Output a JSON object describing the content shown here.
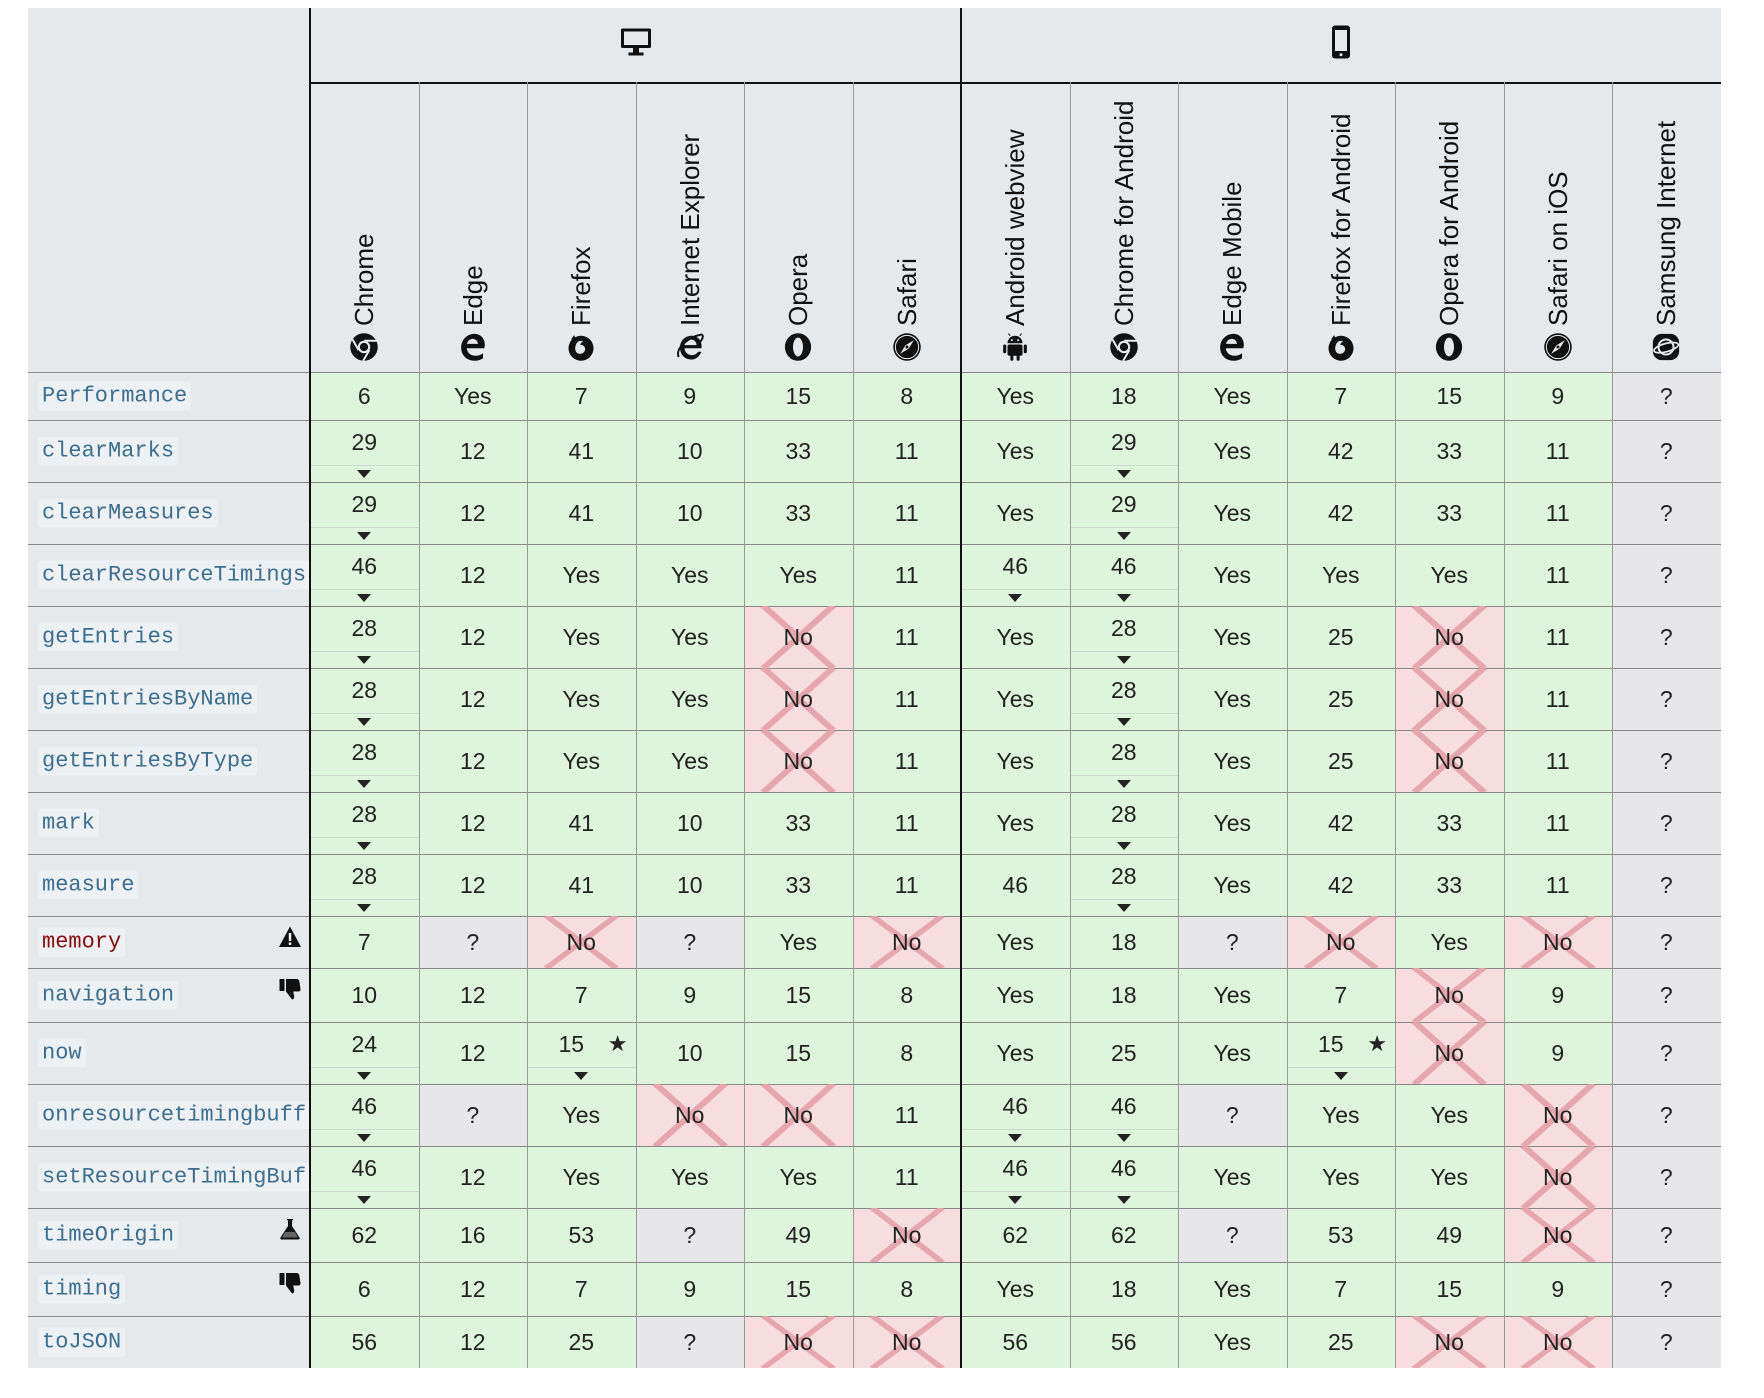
{
  "groups": [
    {
      "label": "Desktop",
      "icon": "desktop-icon"
    },
    {
      "label": "Mobile",
      "icon": "mobile-icon"
    }
  ],
  "browsers": [
    {
      "label": "Chrome",
      "icon": "chrome-icon"
    },
    {
      "label": "Edge",
      "icon": "edge-icon"
    },
    {
      "label": "Firefox",
      "icon": "firefox-icon"
    },
    {
      "label": "Internet Explorer",
      "icon": "internet-explorer-icon"
    },
    {
      "label": "Opera",
      "icon": "opera-icon"
    },
    {
      "label": "Safari",
      "icon": "safari-icon"
    },
    {
      "label": "Android webview",
      "icon": "android-icon"
    },
    {
      "label": "Chrome for Android",
      "icon": "chrome-icon"
    },
    {
      "label": "Edge Mobile",
      "icon": "edge-icon"
    },
    {
      "label": "Firefox for Android",
      "icon": "firefox-icon"
    },
    {
      "label": "Opera for Android",
      "icon": "opera-icon"
    },
    {
      "label": "Safari on iOS",
      "icon": "safari-icon"
    },
    {
      "label": "Samsung Internet",
      "icon": "samsung-internet-icon"
    }
  ],
  "rows": [
    {
      "name": "Performance",
      "warn": false,
      "flag": "",
      "cells": [
        {
          "v": "6",
          "s": "yes"
        },
        {
          "v": "Yes",
          "s": "yes"
        },
        {
          "v": "7",
          "s": "yes"
        },
        {
          "v": "9",
          "s": "yes"
        },
        {
          "v": "15",
          "s": "yes"
        },
        {
          "v": "8",
          "s": "yes"
        },
        {
          "v": "Yes",
          "s": "yes"
        },
        {
          "v": "18",
          "s": "yes"
        },
        {
          "v": "Yes",
          "s": "yes"
        },
        {
          "v": "7",
          "s": "yes"
        },
        {
          "v": "15",
          "s": "yes"
        },
        {
          "v": "9",
          "s": "yes"
        },
        {
          "v": "?",
          "s": "unk"
        }
      ]
    },
    {
      "name": "clearMarks",
      "warn": false,
      "flag": "",
      "cells": [
        {
          "v": "29",
          "s": "yes",
          "note": true
        },
        {
          "v": "12",
          "s": "yes"
        },
        {
          "v": "41",
          "s": "yes"
        },
        {
          "v": "10",
          "s": "yes"
        },
        {
          "v": "33",
          "s": "yes"
        },
        {
          "v": "11",
          "s": "yes"
        },
        {
          "v": "Yes",
          "s": "yes"
        },
        {
          "v": "29",
          "s": "yes",
          "note": true
        },
        {
          "v": "Yes",
          "s": "yes"
        },
        {
          "v": "42",
          "s": "yes"
        },
        {
          "v": "33",
          "s": "yes"
        },
        {
          "v": "11",
          "s": "yes"
        },
        {
          "v": "?",
          "s": "unk"
        }
      ]
    },
    {
      "name": "clearMeasures",
      "warn": false,
      "flag": "",
      "cells": [
        {
          "v": "29",
          "s": "yes",
          "note": true
        },
        {
          "v": "12",
          "s": "yes"
        },
        {
          "v": "41",
          "s": "yes"
        },
        {
          "v": "10",
          "s": "yes"
        },
        {
          "v": "33",
          "s": "yes"
        },
        {
          "v": "11",
          "s": "yes"
        },
        {
          "v": "Yes",
          "s": "yes"
        },
        {
          "v": "29",
          "s": "yes",
          "note": true
        },
        {
          "v": "Yes",
          "s": "yes"
        },
        {
          "v": "42",
          "s": "yes"
        },
        {
          "v": "33",
          "s": "yes"
        },
        {
          "v": "11",
          "s": "yes"
        },
        {
          "v": "?",
          "s": "unk"
        }
      ]
    },
    {
      "name": "clearResourceTimings",
      "warn": false,
      "flag": "",
      "cells": [
        {
          "v": "46",
          "s": "yes",
          "note": true
        },
        {
          "v": "12",
          "s": "yes"
        },
        {
          "v": "Yes",
          "s": "yes"
        },
        {
          "v": "Yes",
          "s": "yes"
        },
        {
          "v": "Yes",
          "s": "yes"
        },
        {
          "v": "11",
          "s": "yes"
        },
        {
          "v": "46",
          "s": "yes",
          "note": true
        },
        {
          "v": "46",
          "s": "yes",
          "note": true
        },
        {
          "v": "Yes",
          "s": "yes"
        },
        {
          "v": "Yes",
          "s": "yes"
        },
        {
          "v": "Yes",
          "s": "yes"
        },
        {
          "v": "11",
          "s": "yes"
        },
        {
          "v": "?",
          "s": "unk"
        }
      ]
    },
    {
      "name": "getEntries",
      "warn": false,
      "flag": "",
      "cells": [
        {
          "v": "28",
          "s": "yes",
          "note": true
        },
        {
          "v": "12",
          "s": "yes"
        },
        {
          "v": "Yes",
          "s": "yes"
        },
        {
          "v": "Yes",
          "s": "yes"
        },
        {
          "v": "No",
          "s": "no"
        },
        {
          "v": "11",
          "s": "yes"
        },
        {
          "v": "Yes",
          "s": "yes"
        },
        {
          "v": "28",
          "s": "yes",
          "note": true
        },
        {
          "v": "Yes",
          "s": "yes"
        },
        {
          "v": "25",
          "s": "yes"
        },
        {
          "v": "No",
          "s": "no"
        },
        {
          "v": "11",
          "s": "yes"
        },
        {
          "v": "?",
          "s": "unk"
        }
      ]
    },
    {
      "name": "getEntriesByName",
      "warn": false,
      "flag": "",
      "cells": [
        {
          "v": "28",
          "s": "yes",
          "note": true
        },
        {
          "v": "12",
          "s": "yes"
        },
        {
          "v": "Yes",
          "s": "yes"
        },
        {
          "v": "Yes",
          "s": "yes"
        },
        {
          "v": "No",
          "s": "no"
        },
        {
          "v": "11",
          "s": "yes"
        },
        {
          "v": "Yes",
          "s": "yes"
        },
        {
          "v": "28",
          "s": "yes",
          "note": true
        },
        {
          "v": "Yes",
          "s": "yes"
        },
        {
          "v": "25",
          "s": "yes"
        },
        {
          "v": "No",
          "s": "no"
        },
        {
          "v": "11",
          "s": "yes"
        },
        {
          "v": "?",
          "s": "unk"
        }
      ]
    },
    {
      "name": "getEntriesByType",
      "warn": false,
      "flag": "",
      "cells": [
        {
          "v": "28",
          "s": "yes",
          "note": true
        },
        {
          "v": "12",
          "s": "yes"
        },
        {
          "v": "Yes",
          "s": "yes"
        },
        {
          "v": "Yes",
          "s": "yes"
        },
        {
          "v": "No",
          "s": "no"
        },
        {
          "v": "11",
          "s": "yes"
        },
        {
          "v": "Yes",
          "s": "yes"
        },
        {
          "v": "28",
          "s": "yes",
          "note": true
        },
        {
          "v": "Yes",
          "s": "yes"
        },
        {
          "v": "25",
          "s": "yes"
        },
        {
          "v": "No",
          "s": "no"
        },
        {
          "v": "11",
          "s": "yes"
        },
        {
          "v": "?",
          "s": "unk"
        }
      ]
    },
    {
      "name": "mark",
      "warn": false,
      "flag": "",
      "cells": [
        {
          "v": "28",
          "s": "yes",
          "note": true
        },
        {
          "v": "12",
          "s": "yes"
        },
        {
          "v": "41",
          "s": "yes"
        },
        {
          "v": "10",
          "s": "yes"
        },
        {
          "v": "33",
          "s": "yes"
        },
        {
          "v": "11",
          "s": "yes"
        },
        {
          "v": "Yes",
          "s": "yes"
        },
        {
          "v": "28",
          "s": "yes",
          "note": true
        },
        {
          "v": "Yes",
          "s": "yes"
        },
        {
          "v": "42",
          "s": "yes"
        },
        {
          "v": "33",
          "s": "yes"
        },
        {
          "v": "11",
          "s": "yes"
        },
        {
          "v": "?",
          "s": "unk"
        }
      ]
    },
    {
      "name": "measure",
      "warn": false,
      "flag": "",
      "cells": [
        {
          "v": "28",
          "s": "yes",
          "note": true
        },
        {
          "v": "12",
          "s": "yes"
        },
        {
          "v": "41",
          "s": "yes"
        },
        {
          "v": "10",
          "s": "yes"
        },
        {
          "v": "33",
          "s": "yes"
        },
        {
          "v": "11",
          "s": "yes"
        },
        {
          "v": "46",
          "s": "yes"
        },
        {
          "v": "28",
          "s": "yes",
          "note": true
        },
        {
          "v": "Yes",
          "s": "yes"
        },
        {
          "v": "42",
          "s": "yes"
        },
        {
          "v": "33",
          "s": "yes"
        },
        {
          "v": "11",
          "s": "yes"
        },
        {
          "v": "?",
          "s": "unk"
        }
      ]
    },
    {
      "name": "memory",
      "warn": true,
      "flag": "warning-icon",
      "cells": [
        {
          "v": "7",
          "s": "yes"
        },
        {
          "v": "?",
          "s": "unk"
        },
        {
          "v": "No",
          "s": "no"
        },
        {
          "v": "?",
          "s": "unk"
        },
        {
          "v": "Yes",
          "s": "yes"
        },
        {
          "v": "No",
          "s": "no"
        },
        {
          "v": "Yes",
          "s": "yes"
        },
        {
          "v": "18",
          "s": "yes"
        },
        {
          "v": "?",
          "s": "unk"
        },
        {
          "v": "No",
          "s": "no"
        },
        {
          "v": "Yes",
          "s": "yes"
        },
        {
          "v": "No",
          "s": "no"
        },
        {
          "v": "?",
          "s": "unk"
        }
      ]
    },
    {
      "name": "navigation",
      "warn": false,
      "flag": "thumbs-down-icon",
      "cells": [
        {
          "v": "10",
          "s": "yes"
        },
        {
          "v": "12",
          "s": "yes"
        },
        {
          "v": "7",
          "s": "yes"
        },
        {
          "v": "9",
          "s": "yes"
        },
        {
          "v": "15",
          "s": "yes"
        },
        {
          "v": "8",
          "s": "yes"
        },
        {
          "v": "Yes",
          "s": "yes"
        },
        {
          "v": "18",
          "s": "yes"
        },
        {
          "v": "Yes",
          "s": "yes"
        },
        {
          "v": "7",
          "s": "yes"
        },
        {
          "v": "No",
          "s": "no"
        },
        {
          "v": "9",
          "s": "yes"
        },
        {
          "v": "?",
          "s": "unk"
        }
      ]
    },
    {
      "name": "now",
      "warn": false,
      "flag": "",
      "cells": [
        {
          "v": "24",
          "s": "yes",
          "note": true
        },
        {
          "v": "12",
          "s": "yes"
        },
        {
          "v": "15",
          "s": "yes",
          "note": true,
          "star": true
        },
        {
          "v": "10",
          "s": "yes"
        },
        {
          "v": "15",
          "s": "yes"
        },
        {
          "v": "8",
          "s": "yes"
        },
        {
          "v": "Yes",
          "s": "yes"
        },
        {
          "v": "25",
          "s": "yes"
        },
        {
          "v": "Yes",
          "s": "yes"
        },
        {
          "v": "15",
          "s": "yes",
          "note": true,
          "star": true
        },
        {
          "v": "No",
          "s": "no"
        },
        {
          "v": "9",
          "s": "yes"
        },
        {
          "v": "?",
          "s": "unk"
        }
      ]
    },
    {
      "name": "onresourcetimingbuff",
      "warn": false,
      "flag": "",
      "cells": [
        {
          "v": "46",
          "s": "yes",
          "note": true
        },
        {
          "v": "?",
          "s": "unk"
        },
        {
          "v": "Yes",
          "s": "yes"
        },
        {
          "v": "No",
          "s": "no"
        },
        {
          "v": "No",
          "s": "no"
        },
        {
          "v": "11",
          "s": "yes"
        },
        {
          "v": "46",
          "s": "yes",
          "note": true
        },
        {
          "v": "46",
          "s": "yes",
          "note": true
        },
        {
          "v": "?",
          "s": "unk"
        },
        {
          "v": "Yes",
          "s": "yes"
        },
        {
          "v": "Yes",
          "s": "yes"
        },
        {
          "v": "No",
          "s": "no"
        },
        {
          "v": "?",
          "s": "unk"
        }
      ]
    },
    {
      "name": "setResourceTimingBuf",
      "warn": false,
      "flag": "",
      "cells": [
        {
          "v": "46",
          "s": "yes",
          "note": true
        },
        {
          "v": "12",
          "s": "yes"
        },
        {
          "v": "Yes",
          "s": "yes"
        },
        {
          "v": "Yes",
          "s": "yes"
        },
        {
          "v": "Yes",
          "s": "yes"
        },
        {
          "v": "11",
          "s": "yes"
        },
        {
          "v": "46",
          "s": "yes",
          "note": true
        },
        {
          "v": "46",
          "s": "yes",
          "note": true
        },
        {
          "v": "Yes",
          "s": "yes"
        },
        {
          "v": "Yes",
          "s": "yes"
        },
        {
          "v": "Yes",
          "s": "yes"
        },
        {
          "v": "No",
          "s": "no"
        },
        {
          "v": "?",
          "s": "unk"
        }
      ]
    },
    {
      "name": "timeOrigin",
      "warn": false,
      "flag": "flask-icon",
      "cells": [
        {
          "v": "62",
          "s": "yes"
        },
        {
          "v": "16",
          "s": "yes"
        },
        {
          "v": "53",
          "s": "yes"
        },
        {
          "v": "?",
          "s": "unk"
        },
        {
          "v": "49",
          "s": "yes"
        },
        {
          "v": "No",
          "s": "no"
        },
        {
          "v": "62",
          "s": "yes"
        },
        {
          "v": "62",
          "s": "yes"
        },
        {
          "v": "?",
          "s": "unk"
        },
        {
          "v": "53",
          "s": "yes"
        },
        {
          "v": "49",
          "s": "yes"
        },
        {
          "v": "No",
          "s": "no"
        },
        {
          "v": "?",
          "s": "unk"
        }
      ]
    },
    {
      "name": "timing",
      "warn": false,
      "flag": "thumbs-down-icon",
      "cells": [
        {
          "v": "6",
          "s": "yes"
        },
        {
          "v": "12",
          "s": "yes"
        },
        {
          "v": "7",
          "s": "yes"
        },
        {
          "v": "9",
          "s": "yes"
        },
        {
          "v": "15",
          "s": "yes"
        },
        {
          "v": "8",
          "s": "yes"
        },
        {
          "v": "Yes",
          "s": "yes"
        },
        {
          "v": "18",
          "s": "yes"
        },
        {
          "v": "Yes",
          "s": "yes"
        },
        {
          "v": "7",
          "s": "yes"
        },
        {
          "v": "15",
          "s": "yes"
        },
        {
          "v": "9",
          "s": "yes"
        },
        {
          "v": "?",
          "s": "unk"
        }
      ]
    },
    {
      "name": "toJSON",
      "warn": false,
      "flag": "",
      "cells": [
        {
          "v": "56",
          "s": "yes"
        },
        {
          "v": "12",
          "s": "yes"
        },
        {
          "v": "25",
          "s": "yes"
        },
        {
          "v": "?",
          "s": "unk"
        },
        {
          "v": "No",
          "s": "no"
        },
        {
          "v": "No",
          "s": "no"
        },
        {
          "v": "56",
          "s": "yes"
        },
        {
          "v": "56",
          "s": "yes"
        },
        {
          "v": "Yes",
          "s": "yes"
        },
        {
          "v": "25",
          "s": "yes"
        },
        {
          "v": "No",
          "s": "no"
        },
        {
          "v": "No",
          "s": "no"
        },
        {
          "v": "?",
          "s": "unk"
        }
      ]
    }
  ],
  "colors": {
    "yes": "#dff4dc",
    "no": "#f7dde0",
    "unknown": "#e7e7e9",
    "header": "#e5e9ec",
    "x_mark": "#e6a6ae"
  }
}
